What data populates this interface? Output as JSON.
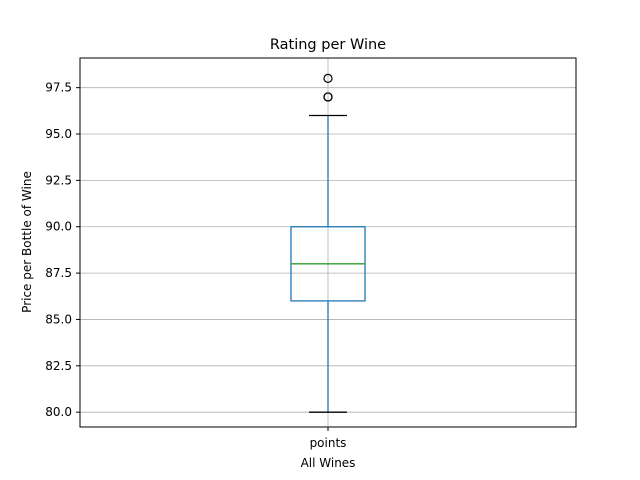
{
  "chart_data": {
    "type": "box",
    "title": "Rating per Wine",
    "xlabel": "All Wines",
    "ylabel": "Price per Bottle of Wine",
    "ylim": [
      79.2,
      99.1
    ],
    "yticks": [
      80.0,
      82.5,
      85.0,
      87.5,
      90.0,
      92.5,
      95.0,
      97.5
    ],
    "grid": true,
    "series": [
      {
        "category": "points",
        "whisker_low": 80,
        "q1": 86,
        "median": 88,
        "q3": 90,
        "whisker_high": 96,
        "outliers": [
          97,
          97,
          98
        ]
      }
    ],
    "colors": {
      "box": "#1f77b4",
      "median": "#2ca02c",
      "grid": "#b0b0b0",
      "caps": "#000000",
      "outlier": "#000000"
    }
  }
}
